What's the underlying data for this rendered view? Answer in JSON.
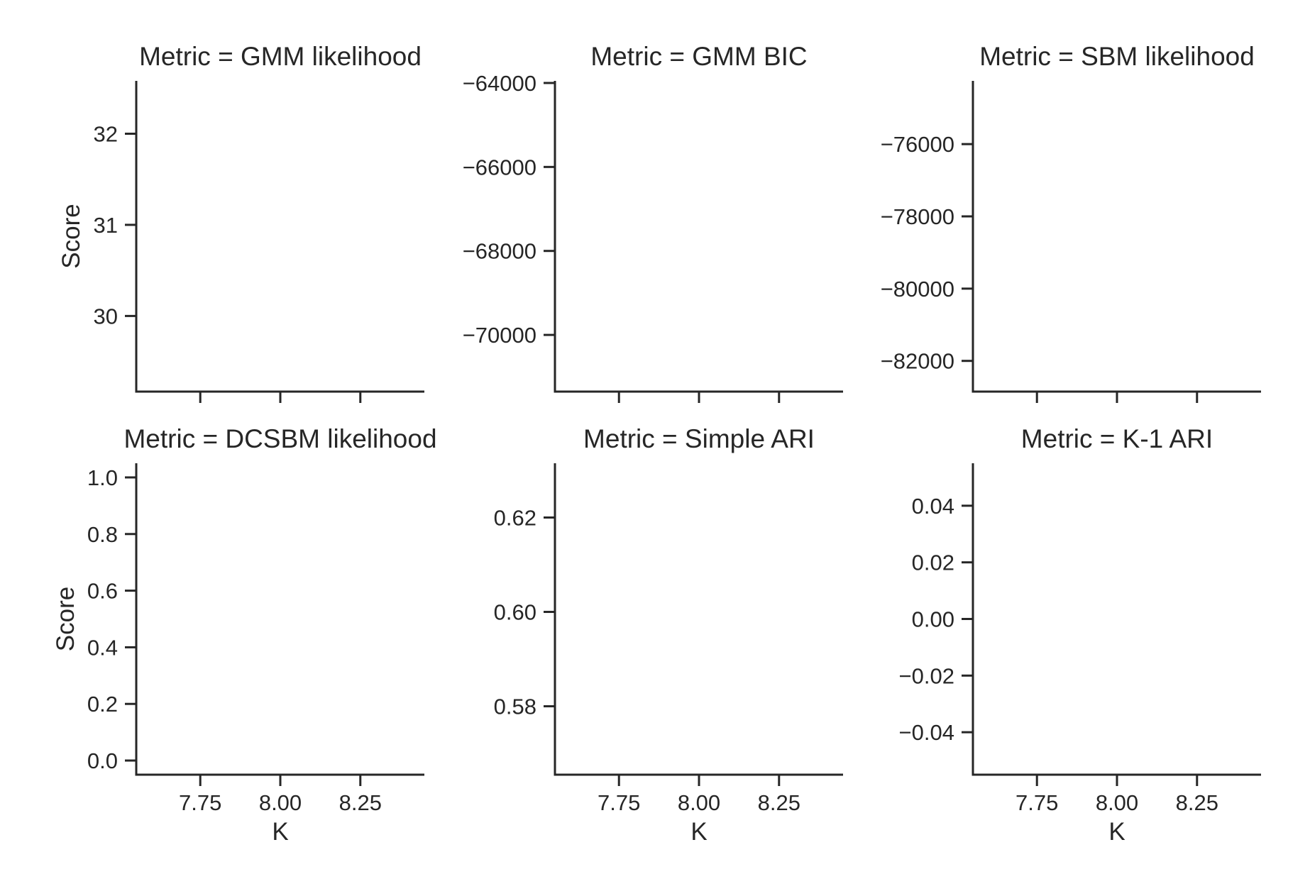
{
  "chart_data": [
    {
      "type": "scatter",
      "title": "Metric = GMM likelihood",
      "xlabel": "",
      "ylabel": "Score",
      "xlim": [
        7.55,
        8.45
      ],
      "ylim": [
        29.17,
        32.58
      ],
      "xticks": [
        7.75,
        8.0,
        8.25
      ],
      "xtick_labels": [],
      "yticks": [
        30,
        31,
        32
      ],
      "ytick_labels": [
        "30",
        "31",
        "32"
      ],
      "series": [],
      "grid": false
    },
    {
      "type": "scatter",
      "title": "Metric = GMM BIC",
      "xlabel": "",
      "ylabel": "",
      "xlim": [
        7.55,
        8.45
      ],
      "ylim": [
        -71350,
        -63950
      ],
      "xticks": [
        7.75,
        8.0,
        8.25
      ],
      "xtick_labels": [],
      "yticks": [
        -70000,
        -68000,
        -66000,
        -64000
      ],
      "ytick_labels": [
        "−70000",
        "−68000",
        "−66000",
        "−64000"
      ],
      "series": [],
      "grid": false
    },
    {
      "type": "scatter",
      "title": "Metric = SBM likelihood",
      "xlabel": "",
      "ylabel": "",
      "xlim": [
        7.55,
        8.45
      ],
      "ylim": [
        -82850,
        -74250
      ],
      "xticks": [
        7.75,
        8.0,
        8.25
      ],
      "xtick_labels": [],
      "yticks": [
        -82000,
        -80000,
        -78000,
        -76000
      ],
      "ytick_labels": [
        "−82000",
        "−80000",
        "−78000",
        "−76000"
      ],
      "series": [],
      "grid": false
    },
    {
      "type": "scatter",
      "title": "Metric = DCSBM likelihood",
      "xlabel": "K",
      "ylabel": "Score",
      "xlim": [
        7.55,
        8.45
      ],
      "ylim": [
        -0.05,
        1.05
      ],
      "xticks": [
        7.75,
        8.0,
        8.25
      ],
      "xtick_labels": [
        "7.75",
        "8.00",
        "8.25"
      ],
      "yticks": [
        0.0,
        0.2,
        0.4,
        0.6,
        0.8,
        1.0
      ],
      "ytick_labels": [
        "0.0",
        "0.2",
        "0.4",
        "0.6",
        "0.8",
        "1.0"
      ],
      "series": [],
      "grid": false
    },
    {
      "type": "scatter",
      "title": "Metric = Simple ARI",
      "xlabel": "K",
      "ylabel": "",
      "xlim": [
        7.55,
        8.45
      ],
      "ylim": [
        0.5655,
        0.6315
      ],
      "xticks": [
        7.75,
        8.0,
        8.25
      ],
      "xtick_labels": [
        "7.75",
        "8.00",
        "8.25"
      ],
      "yticks": [
        0.58,
        0.6,
        0.62
      ],
      "ytick_labels": [
        "0.58",
        "0.60",
        "0.62"
      ],
      "series": [],
      "grid": false
    },
    {
      "type": "scatter",
      "title": "Metric = K-1 ARI",
      "xlabel": "K",
      "ylabel": "",
      "xlim": [
        7.55,
        8.45
      ],
      "ylim": [
        -0.055,
        0.055
      ],
      "xticks": [
        7.75,
        8.0,
        8.25
      ],
      "xtick_labels": [
        "7.75",
        "8.00",
        "8.25"
      ],
      "yticks": [
        -0.04,
        -0.02,
        0.0,
        0.02,
        0.04
      ],
      "ytick_labels": [
        "−0.04",
        "−0.02",
        "0.00",
        "0.02",
        "0.04"
      ],
      "series": [],
      "grid": false
    }
  ]
}
